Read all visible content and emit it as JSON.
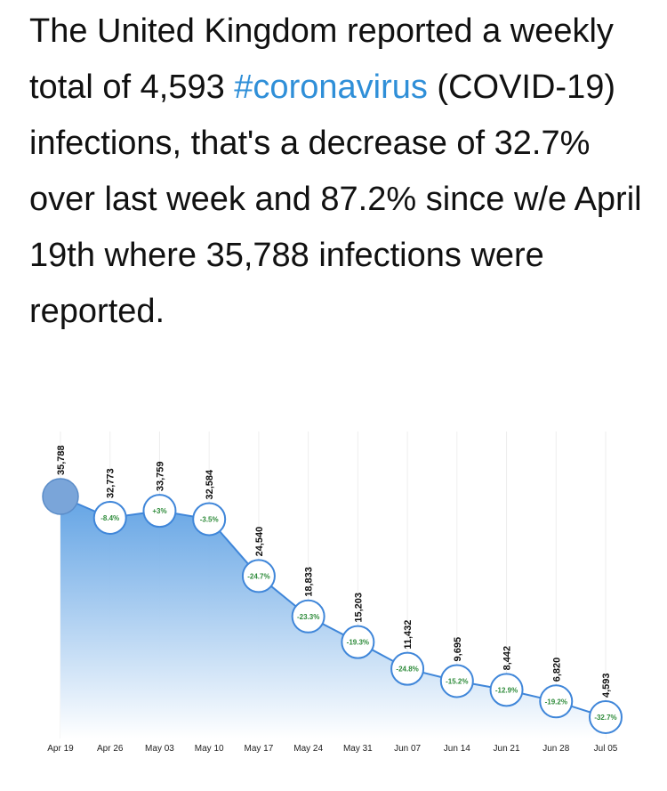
{
  "tweet": {
    "text_part1": "The United Kingdom reported a weekly total of 4,593 ",
    "hashtag": "#coronavirus",
    "text_part2": " (COVID-19) infections, that's a decrease of 32.7% over last week and 87.2% since w/e April 19th where 35,788 infections were reported."
  },
  "chart_data": {
    "type": "area",
    "categories": [
      "Apr 19",
      "Apr 26",
      "May 03",
      "May 10",
      "May 17",
      "May 24",
      "May 31",
      "Jun 07",
      "Jun 14",
      "Jun 21",
      "Jun 28",
      "Jul 05"
    ],
    "series": [
      {
        "values": [
          35788,
          32773,
          33759,
          32584,
          24540,
          18833,
          15203,
          11432,
          9695,
          8442,
          6820,
          4593
        ]
      }
    ],
    "value_labels": [
      "35,788",
      "32,773",
      "33,759",
      "32,584",
      "24,540",
      "18,833",
      "15,203",
      "11,432",
      "9,695",
      "8,442",
      "6,820",
      "4,593"
    ],
    "change_labels": [
      "",
      "-8.4%",
      "+3%",
      "-3.5%",
      "-24.7%",
      "-23.3%",
      "-19.3%",
      "-24.8%",
      "-15.2%",
      "-12.9%",
      "-19.2%",
      "-32.7%"
    ],
    "ylim": [
      0,
      40000
    ],
    "grid": true,
    "colors": {
      "line": "#3f86d9",
      "fill_top": "#5b9fe3",
      "fill_bottom": "#ffffff",
      "first_marker": "#7aa5d9",
      "change_text": "#2e8b3a"
    }
  }
}
